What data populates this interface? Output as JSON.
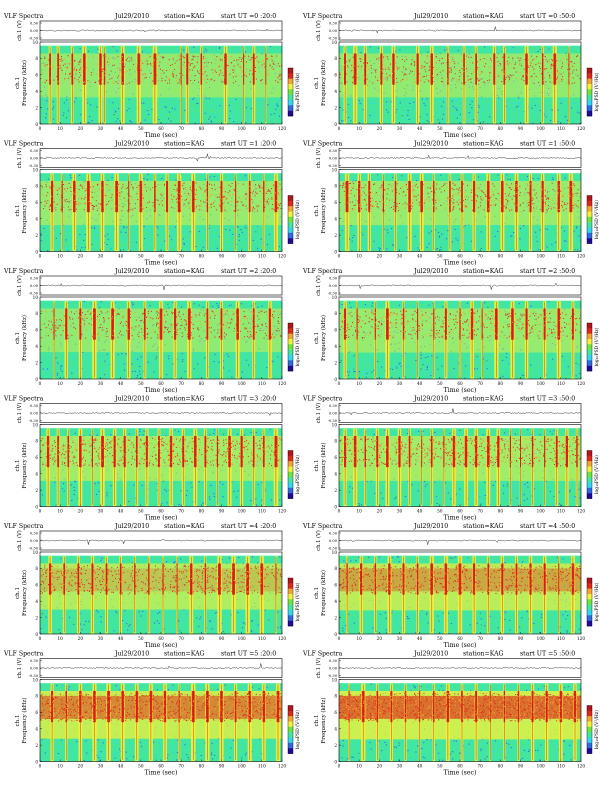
{
  "figure": {
    "title_prefix": "VLF Spectra",
    "channel_label": "ch.1",
    "colorbar_label": "log₁₀PSD (V²/Hz)",
    "colormap": [
      "#1f0a9a",
      "#2f6be0",
      "#32d6f0",
      "#41e6a0",
      "#6ee63c",
      "#f2f23a",
      "#f3a52e",
      "#e0281a",
      "#b2151b"
    ]
  },
  "panels": [
    {
      "date": "Jul29/2010",
      "station": "station=KAG",
      "start_ut": "start  UT  =0 :20:0",
      "activity": 0.35,
      "bursts": [
        5,
        9,
        16,
        22,
        30,
        32,
        41,
        49,
        57,
        70,
        73,
        80,
        92,
        101,
        106,
        112
      ]
    },
    {
      "date": "Jul29/2010",
      "station": "station=KAG",
      "start_ut": "start  UT  =0 :50:0",
      "activity": 0.35,
      "bursts": [
        3,
        8,
        13,
        21,
        27,
        39,
        46,
        54,
        62,
        68,
        77,
        82,
        93,
        101,
        107,
        114
      ]
    },
    {
      "date": "Jul29/2010",
      "station": "station=KAG",
      "start_ut": "start  UT  =1 :20:0",
      "activity": 0.38,
      "bursts": [
        6,
        11,
        17,
        24,
        31,
        38,
        44,
        50,
        57,
        63,
        69,
        76,
        83,
        90,
        97,
        104,
        111,
        117
      ]
    },
    {
      "date": "Jul29/2010",
      "station": "station=KAG",
      "start_ut": "start  UT  =1 :50:0",
      "activity": 0.38,
      "bursts": [
        4,
        10,
        15,
        22,
        28,
        35,
        41,
        47,
        55,
        61,
        67,
        74,
        81,
        88,
        95,
        101,
        109,
        115
      ]
    },
    {
      "date": "Jul29/2010",
      "station": "station=KAG",
      "start_ut": "start  UT  =2 :20:0",
      "activity": 0.32,
      "bursts": [
        7,
        13,
        20,
        27,
        36,
        44,
        52,
        60,
        67,
        74,
        83,
        90,
        98,
        106,
        114
      ]
    },
    {
      "date": "Jul29/2010",
      "station": "station=KAG",
      "start_ut": "start  UT  =2 :50:0",
      "activity": 0.38,
      "bursts": [
        3,
        9,
        18,
        24,
        32,
        39,
        47,
        53,
        60,
        66,
        71,
        78,
        86,
        93,
        102,
        109,
        116
      ]
    },
    {
      "date": "Jul29/2010",
      "station": "station=KAG",
      "start_ut": "start  UT  =3 :20:0",
      "activity": 0.48,
      "bursts": [
        4,
        9,
        14,
        20,
        26,
        31,
        37,
        42,
        48,
        53,
        59,
        65,
        71,
        77,
        82,
        88,
        94,
        100,
        106,
        111,
        117
      ]
    },
    {
      "date": "Jul29/2010",
      "station": "station=KAG",
      "start_ut": "start  UT  =3 :50:0",
      "activity": 0.48,
      "bursts": [
        3,
        8,
        13,
        19,
        24,
        30,
        35,
        41,
        46,
        52,
        57,
        63,
        68,
        74,
        79,
        85,
        90,
        96,
        102,
        108,
        113,
        118
      ]
    },
    {
      "date": "Jul29/2010",
      "station": "station=KAG",
      "start_ut": "start  UT  =4 :20:0",
      "activity": 0.62,
      "bursts": [
        5,
        12,
        19,
        26,
        33,
        40,
        47,
        54,
        61,
        68,
        75,
        82,
        89,
        96,
        103,
        110,
        117
      ]
    },
    {
      "date": "Jul29/2010",
      "station": "station=KAG",
      "start_ut": "start  UT  =4 :50:0",
      "activity": 0.72,
      "bursts": [
        4,
        11,
        18,
        25,
        32,
        39,
        46,
        53,
        60,
        67,
        74,
        81,
        88,
        95,
        102,
        109,
        116
      ]
    },
    {
      "date": "Jul29/2010",
      "station": "station=KAG",
      "start_ut": "start  UT  =5 :20:0",
      "activity": 0.82,
      "bursts": [
        6,
        13,
        20,
        27,
        34,
        41,
        48,
        55,
        62,
        69,
        76,
        83,
        90,
        97,
        104,
        111,
        118
      ]
    },
    {
      "date": "Jul29/2010",
      "station": "station=KAG",
      "start_ut": "start  UT  =5 :50:0",
      "activity": 0.9,
      "bursts": [
        5,
        12,
        19,
        26,
        33,
        40,
        47,
        54,
        61,
        68,
        75,
        82,
        89,
        96,
        103,
        110,
        117
      ]
    }
  ],
  "chart_data": {
    "type": "heatmap",
    "title": "VLF Spectra",
    "xlabel": "Time (sec)",
    "ylabel": "Frequency (kHz)",
    "top_ylabel": "ch.1 (V)",
    "xlim": [
      0,
      120
    ],
    "ylim": [
      0,
      10
    ],
    "top_ylim": [
      -0.3,
      0.3
    ],
    "x_ticks": [
      0,
      10,
      20,
      30,
      40,
      50,
      60,
      70,
      80,
      90,
      100,
      110,
      120
    ],
    "y_ticks": [
      0,
      2,
      4,
      6,
      8,
      10
    ],
    "top_y_ticks": [
      "0.30",
      "0.00",
      "-0.30"
    ]
  }
}
